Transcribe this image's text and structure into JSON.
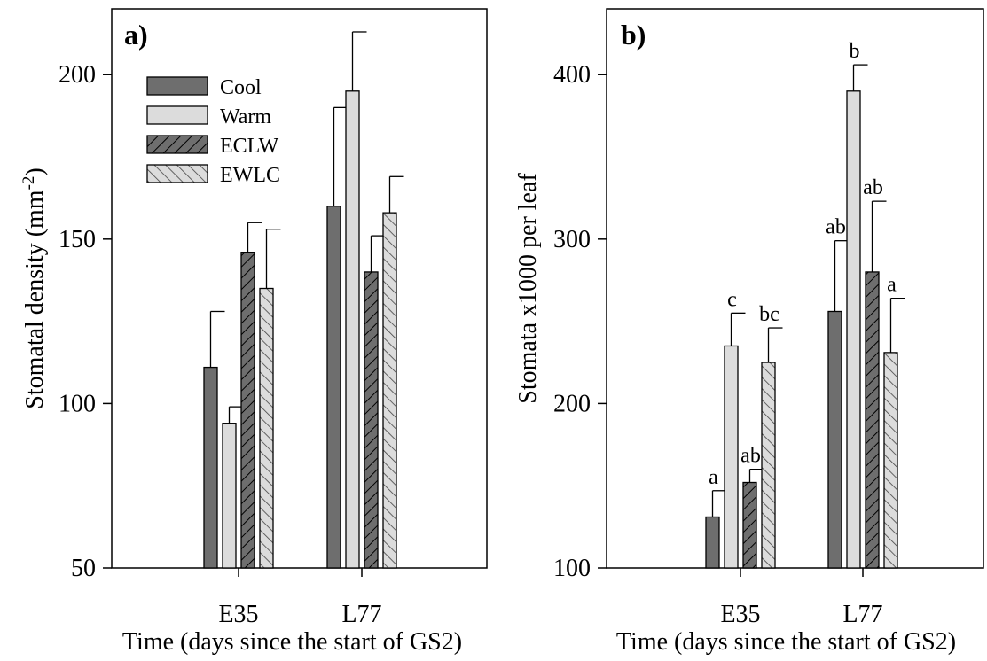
{
  "chart_data": [
    {
      "type": "bar",
      "panel_label": "a)",
      "xlabel": "Time (days since the start of GS2)",
      "ylabel": "Stomatal density (mm⁻²)",
      "ylim": [
        50,
        220
      ],
      "yticks": [
        50,
        100,
        150,
        200
      ],
      "categories": [
        "E35",
        "L77"
      ],
      "series": [
        {
          "name": "Cool",
          "values": [
            111,
            160
          ],
          "errors": [
            17,
            30
          ]
        },
        {
          "name": "Warm",
          "values": [
            94,
            195
          ],
          "errors": [
            5,
            18
          ]
        },
        {
          "name": "ECLW",
          "values": [
            146,
            140
          ],
          "errors": [
            9,
            11
          ]
        },
        {
          "name": "EWLC",
          "values": [
            135,
            158
          ],
          "errors": [
            18,
            11
          ]
        }
      ],
      "legend": {
        "position": "top-left",
        "entries": [
          "Cool",
          "Warm",
          "ECLW",
          "EWLC"
        ]
      },
      "grid": false
    },
    {
      "type": "bar",
      "panel_label": "b)",
      "xlabel": "Time (days since the start of GS2)",
      "ylabel": "Stomata x1000 per leaf",
      "ylim": [
        100,
        440
      ],
      "yticks": [
        100,
        200,
        300,
        400
      ],
      "categories": [
        "E35",
        "L77"
      ],
      "series": [
        {
          "name": "Cool",
          "values": [
            131,
            256
          ],
          "errors": [
            16,
            43
          ],
          "letters": [
            "a",
            "ab"
          ]
        },
        {
          "name": "Warm",
          "values": [
            235,
            390
          ],
          "errors": [
            20,
            16
          ],
          "letters": [
            "c",
            "b"
          ]
        },
        {
          "name": "ECLW",
          "values": [
            152,
            280
          ],
          "errors": [
            8,
            43
          ],
          "letters": [
            "ab",
            "ab"
          ]
        },
        {
          "name": "EWLC",
          "values": [
            225,
            231
          ],
          "errors": [
            21,
            33
          ],
          "letters": [
            "bc",
            "a"
          ]
        }
      ],
      "grid": false
    }
  ],
  "colors": {
    "Cool": "#6e6e6e",
    "Warm": "#dcdcdc",
    "ECLW": "#6e6e6e",
    "EWLC": "#dcdcdc"
  },
  "hatch": {
    "ECLW": "forward",
    "EWLC": "backward"
  }
}
